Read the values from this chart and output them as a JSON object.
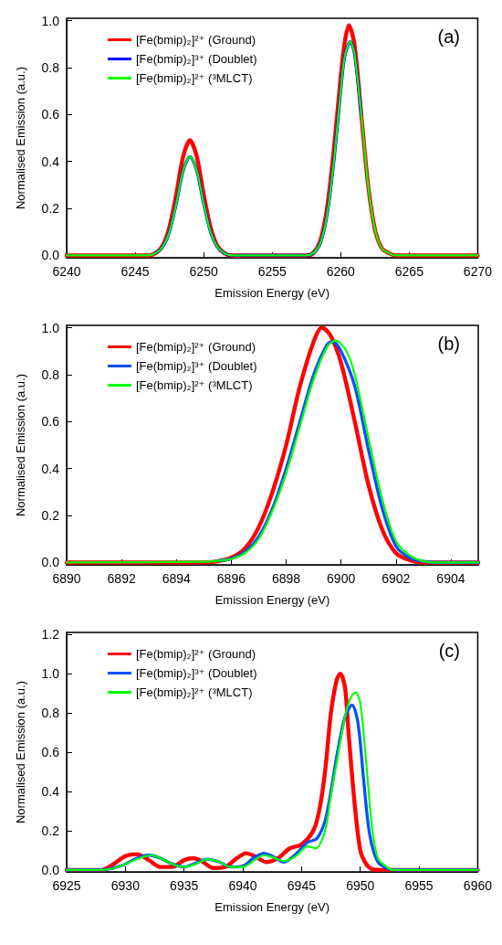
{
  "chart_data": [
    {
      "type": "line",
      "xlabel": "Emission Energy (eV)",
      "ylabel": "Normalised Emission (a.u.)",
      "annotations": [
        "(a)"
      ],
      "legend": "top left",
      "grid": false,
      "marker": "none",
      "line_style": "solid",
      "xlim": [
        6240,
        6270
      ],
      "xticks": [
        6240,
        6245,
        6250,
        6255,
        6260,
        6265,
        6270
      ],
      "ylim": [
        -0.01,
        1.01
      ],
      "yticks": [
        {
          "value": 0,
          "label": "0.0"
        },
        {
          "value": 0.2,
          "label": "0.2"
        },
        {
          "value": 0.4,
          "label": "0.4"
        },
        {
          "value": 0.6,
          "label": "0.6"
        },
        {
          "value": 0.8,
          "label": "0.8"
        },
        {
          "value": 1,
          "label": "1.0"
        }
      ],
      "series": [
        {
          "name": "[Fe(bmip)₂]²⁺ (Ground)",
          "color": "#ff0000",
          "x": [
            6240,
            6246,
            6246.5,
            6247,
            6247.5,
            6248,
            6248.5,
            6249,
            6249.5,
            6250,
            6250.5,
            6251,
            6251.5,
            6252,
            6257.5,
            6258,
            6258.5,
            6259,
            6259.5,
            6260,
            6260.3,
            6260.6,
            6261,
            6261.5,
            6262,
            6262.5,
            6263,
            6263.5,
            6264,
            6270
          ],
          "values": [
            0,
            0,
            0.01,
            0.04,
            0.12,
            0.26,
            0.42,
            0.49,
            0.42,
            0.26,
            0.12,
            0.04,
            0.01,
            0,
            0,
            0.01,
            0.06,
            0.2,
            0.45,
            0.76,
            0.91,
            0.98,
            0.9,
            0.6,
            0.3,
            0.11,
            0.03,
            0.01,
            0,
            0
          ]
        },
        {
          "name": "[Fe(bmip)₂]³⁺ (Doublet)",
          "color": "#0000ff",
          "x": [
            6246.5,
            6247,
            6247.5,
            6248,
            6248.5,
            6249,
            6249.5,
            6250,
            6250.5,
            6251,
            6251.5,
            6252,
            6257.5,
            6258,
            6258.5,
            6259,
            6259.5,
            6260,
            6260.3,
            6260.7,
            6261,
            6261.5
          ],
          "values": [
            0.01,
            0.035,
            0.1,
            0.22,
            0.36,
            0.42,
            0.36,
            0.22,
            0.1,
            0.035,
            0.01,
            0,
            0,
            0.01,
            0.05,
            0.17,
            0.4,
            0.7,
            0.85,
            0.91,
            0.86,
            0.6
          ]
        },
        {
          "name": "[Fe(bmip)₂]²⁺ (³MLCT)",
          "color": "#00ff00",
          "x": [
            6240,
            6246,
            6246.5,
            6247,
            6247.5,
            6248,
            6248.5,
            6249,
            6249.5,
            6250,
            6250.5,
            6251,
            6251.5,
            6252,
            6257.5,
            6258,
            6258.5,
            6259,
            6259.5,
            6260,
            6260.3,
            6260.7,
            6261,
            6261.5,
            6262,
            6262.5,
            6263,
            6263.5,
            6264,
            6270
          ],
          "values": [
            0,
            0,
            0.01,
            0.035,
            0.1,
            0.22,
            0.36,
            0.42,
            0.36,
            0.22,
            0.1,
            0.035,
            0.01,
            0,
            0,
            0.01,
            0.05,
            0.17,
            0.4,
            0.7,
            0.85,
            0.91,
            0.86,
            0.6,
            0.3,
            0.11,
            0.03,
            0.01,
            0,
            0
          ]
        }
      ]
    },
    {
      "type": "line",
      "xlabel": "Emission Energy (eV)",
      "ylabel": "Normalised Emission (a.u.)",
      "annotations": [
        "(b)"
      ],
      "legend": "top left",
      "grid": false,
      "marker": "none",
      "line_style": "solid",
      "xlim": [
        6890,
        6905
      ],
      "xticks": [
        6890,
        6892,
        6894,
        6896,
        6898,
        6900,
        6902,
        6904
      ],
      "ylim": [
        -0.01,
        1.01
      ],
      "yticks": [
        {
          "value": 0,
          "label": "0.0"
        },
        {
          "value": 0.2,
          "label": "0.2"
        },
        {
          "value": 0.4,
          "label": "0.4"
        },
        {
          "value": 0.6,
          "label": "0.6"
        },
        {
          "value": 0.8,
          "label": "0.8"
        },
        {
          "value": 1,
          "label": "1.0"
        }
      ],
      "series": [
        {
          "name": "[Fe(bmip)₂]²⁺ (Ground)",
          "color": "#ff0000",
          "x": [
            6890,
            6895,
            6895.5,
            6896,
            6896.5,
            6897,
            6897.5,
            6898,
            6898.5,
            6899,
            6899.3,
            6899.6,
            6900,
            6900.5,
            6901,
            6901.5,
            6902,
            6902.5,
            6903,
            6905
          ],
          "values": [
            0,
            0,
            0.005,
            0.02,
            0.06,
            0.15,
            0.3,
            0.5,
            0.75,
            0.94,
            1.0,
            0.97,
            0.85,
            0.6,
            0.33,
            0.14,
            0.04,
            0.01,
            0,
            0
          ]
        },
        {
          "name": "[Fe(bmip)₂]³⁺ (Doublet)",
          "color": "#0050ff",
          "x": [
            6895.5,
            6896,
            6896.5,
            6897,
            6897.5,
            6898,
            6898.5,
            6899,
            6899.5,
            6899.7,
            6900,
            6900.5,
            6901,
            6901.5,
            6902,
            6902.5,
            6903,
            6903.5,
            6905
          ],
          "values": [
            0.007,
            0.016,
            0.045,
            0.11,
            0.23,
            0.4,
            0.6,
            0.8,
            0.93,
            0.94,
            0.9,
            0.75,
            0.48,
            0.23,
            0.07,
            0.02,
            0.005,
            0,
            0
          ]
        },
        {
          "name": "[Fe(bmip)₂]²⁺ (³MLCT)",
          "color": "#00ff00",
          "x": [
            6890,
            6895,
            6895.5,
            6896,
            6896.5,
            6897,
            6897.5,
            6898,
            6898.5,
            6899,
            6899.5,
            6899.8,
            6900.2,
            6900.5,
            6901,
            6901.5,
            6902,
            6902.5,
            6903,
            6903.5,
            6905
          ],
          "values": [
            0,
            0.003,
            0.007,
            0.015,
            0.04,
            0.1,
            0.22,
            0.38,
            0.58,
            0.78,
            0.92,
            0.945,
            0.9,
            0.8,
            0.53,
            0.27,
            0.09,
            0.03,
            0.005,
            0,
            0
          ]
        }
      ]
    },
    {
      "type": "line",
      "xlabel": "Emission Energy (eV)",
      "ylabel": "Normalised Emission (a.u.)",
      "annotations": [
        "(c)"
      ],
      "legend": "top left",
      "grid": false,
      "marker": "none",
      "line_style": "solid",
      "xlim": [
        6925,
        6960
      ],
      "xticks": [
        6925,
        6930,
        6935,
        6940,
        6945,
        6950,
        6955,
        6960
      ],
      "ylim": [
        -0.01,
        1.21
      ],
      "yticks": [
        {
          "value": 0,
          "label": "0.0"
        },
        {
          "value": 0.2,
          "label": "0.2"
        },
        {
          "value": 0.4,
          "label": "0.4"
        },
        {
          "value": 0.6,
          "label": "0.6"
        },
        {
          "value": 0.8,
          "label": "0.8"
        },
        {
          "value": 1,
          "label": "1.0"
        },
        {
          "value": 1.2,
          "label": "1.2"
        }
      ],
      "series": [
        {
          "name": "[Fe(bmip)₂]²⁺ (Ground)",
          "color": "#ff0000",
          "x": [
            6925,
            6928,
            6929,
            6930,
            6931,
            6932,
            6933,
            6934,
            6935,
            6935.8,
            6936.5,
            6937.5,
            6938.5,
            6939.5,
            6940.3,
            6941,
            6942,
            6943,
            6944,
            6945,
            6946,
            6946.5,
            6947,
            6947.5,
            6948,
            6948.3,
            6948.7,
            6949,
            6949.5,
            6950,
            6950.5,
            6951,
            6952,
            6960
          ],
          "values": [
            0,
            0,
            0.03,
            0.07,
            0.08,
            0.05,
            0.015,
            0.015,
            0.05,
            0.06,
            0.045,
            0.01,
            0.015,
            0.06,
            0.085,
            0.07,
            0.04,
            0.06,
            0.11,
            0.13,
            0.2,
            0.3,
            0.5,
            0.8,
            0.97,
            1.0,
            0.93,
            0.7,
            0.35,
            0.1,
            0.03,
            0.005,
            0,
            0
          ]
        },
        {
          "name": "[Fe(bmip)₂]³⁺ (Doublet)",
          "color": "#0050ff",
          "x": [
            6925,
            6928,
            6929,
            6930,
            6931,
            6932,
            6933,
            6934,
            6935,
            6936,
            6937,
            6938,
            6939,
            6940,
            6941,
            6941.8,
            6942.5,
            6943.5,
            6944.5,
            6945.5,
            6946.3,
            6947,
            6947.5,
            6948,
            6948.7,
            6949.3,
            6949.8,
            6950.3,
            6950.8,
            6951.5,
            6952.5,
            6953,
            6960
          ],
          "values": [
            0,
            0,
            0.01,
            0.03,
            0.06,
            0.075,
            0.06,
            0.03,
            0.015,
            0.035,
            0.055,
            0.04,
            0.015,
            0.02,
            0.065,
            0.085,
            0.07,
            0.04,
            0.08,
            0.14,
            0.16,
            0.25,
            0.4,
            0.58,
            0.78,
            0.84,
            0.75,
            0.45,
            0.18,
            0.04,
            0.003,
            0,
            0
          ]
        },
        {
          "name": "[Fe(bmip)₂]²⁺ (³MLCT)",
          "color": "#00ff00",
          "x": [
            6925,
            6928,
            6929,
            6930,
            6931,
            6932.2,
            6933,
            6934,
            6935,
            6936,
            6937,
            6938,
            6939,
            6940,
            6941,
            6941.8,
            6942.5,
            6943.5,
            6944.5,
            6945.5,
            6946.2,
            6947,
            6947.5,
            6948,
            6948.7,
            6949.2,
            6949.6,
            6950,
            6950.5,
            6951,
            6951.5,
            6952.5,
            6953,
            6960
          ],
          "values": [
            0,
            0,
            0.01,
            0.03,
            0.055,
            0.075,
            0.06,
            0.03,
            0.015,
            0.03,
            0.055,
            0.04,
            0.015,
            0.015,
            0.05,
            0.075,
            0.065,
            0.045,
            0.07,
            0.12,
            0.11,
            0.2,
            0.38,
            0.55,
            0.78,
            0.88,
            0.905,
            0.85,
            0.55,
            0.22,
            0.06,
            0.005,
            0,
            0
          ]
        }
      ]
    }
  ]
}
